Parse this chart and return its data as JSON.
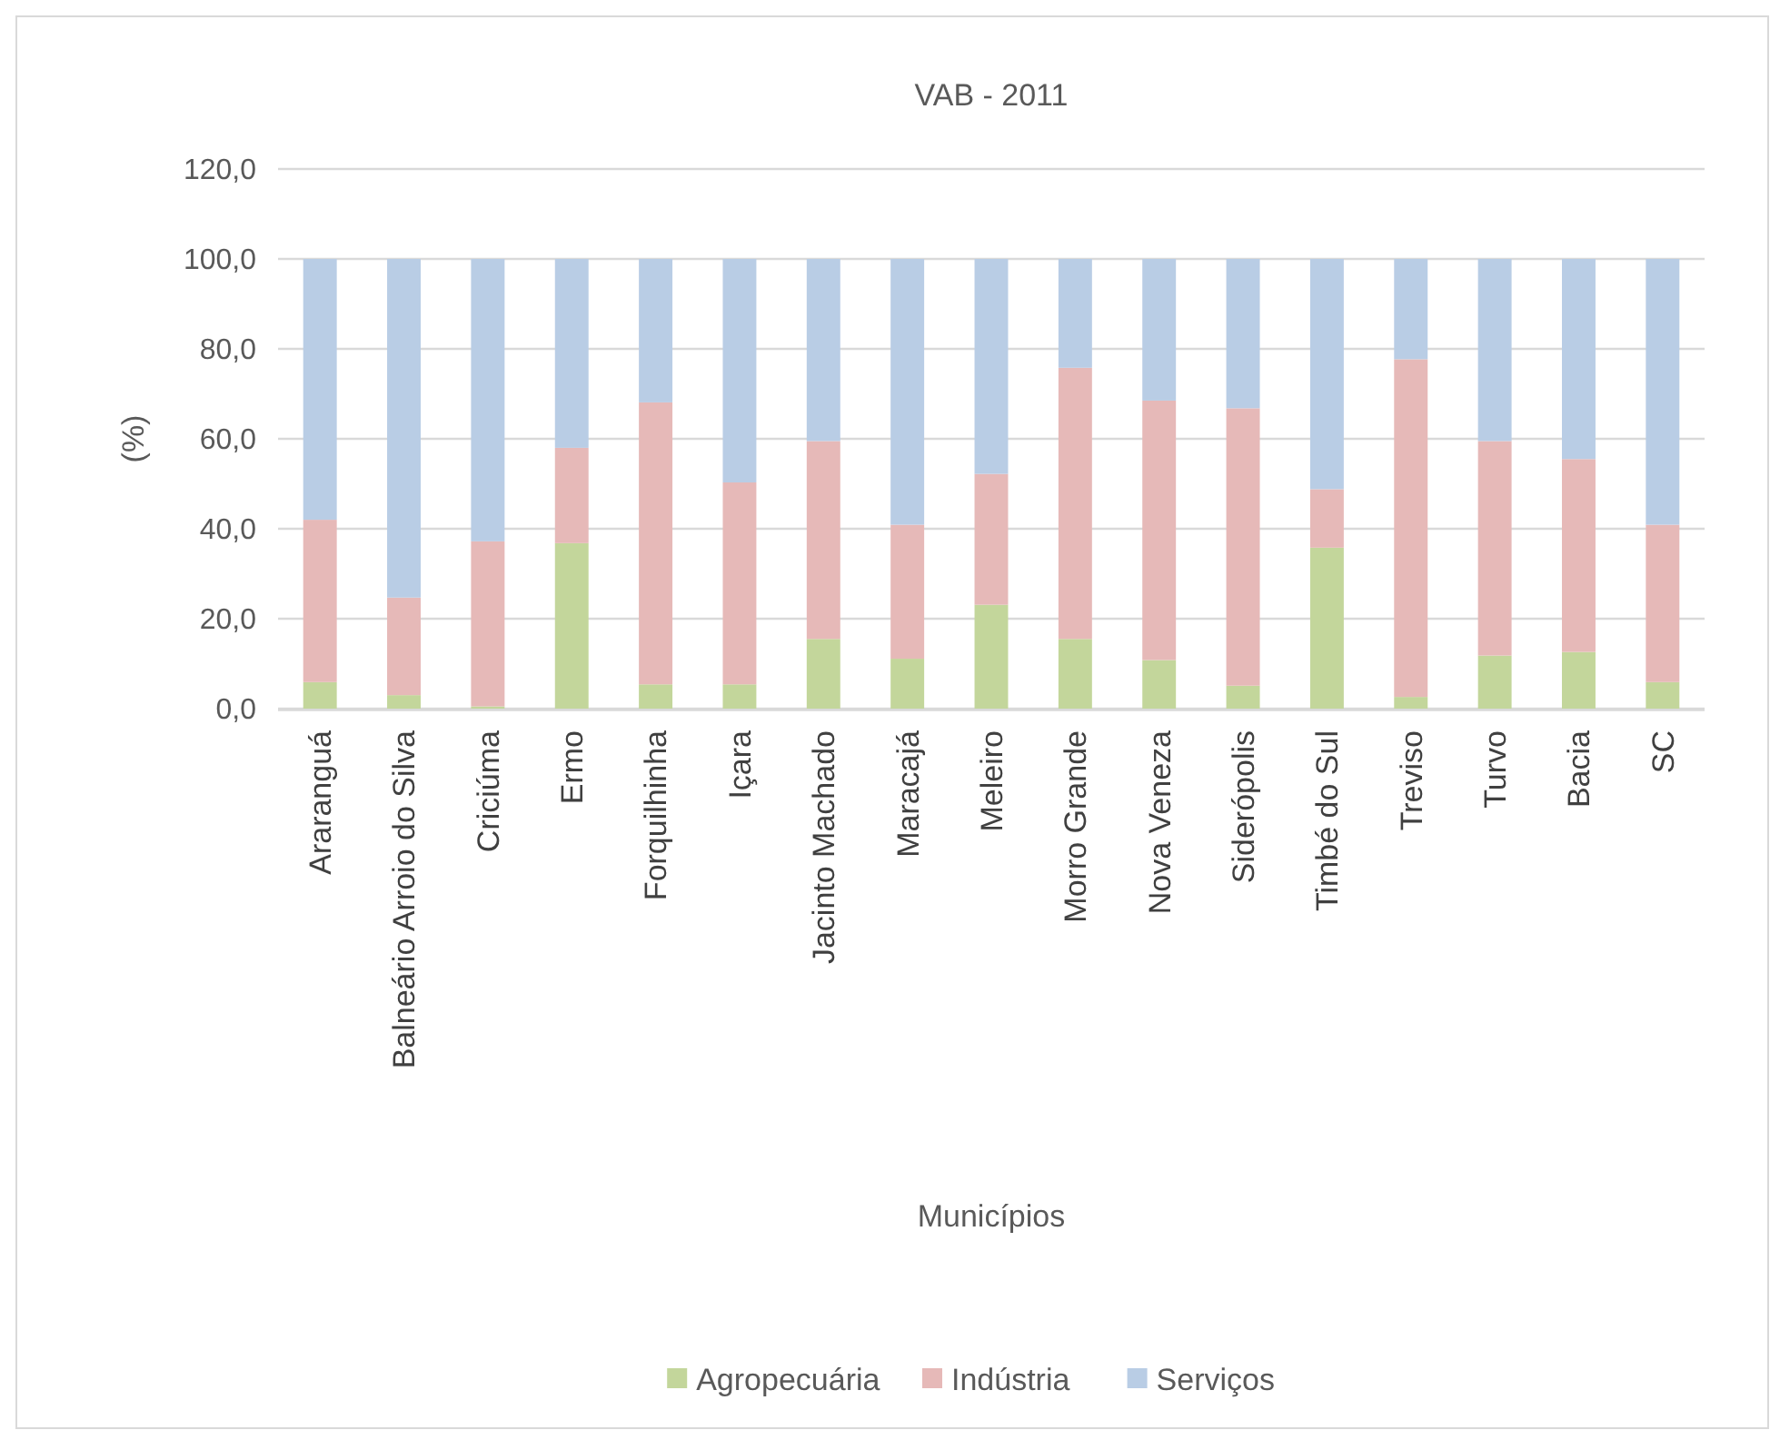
{
  "chart_data": {
    "type": "bar",
    "stacked": true,
    "title": "VAB - 2011",
    "xlabel": "Municípios",
    "ylabel": "(%)",
    "categories": [
      "Araranguá",
      "Balneário Arroio do Silva",
      "Criciúma",
      "Ermo",
      "Forquilhinha",
      "Içara",
      "Jacinto Machado",
      "Maracajá",
      "Meleiro",
      "Morro Grande",
      "Nova Veneza",
      "Siderópolis",
      "Timbé do Sul",
      "Treviso",
      "Turvo",
      "Bacia",
      "SC"
    ],
    "series": [
      {
        "name": "Agropecuária",
        "color": "#c3d69b",
        "values": [
          5.9,
          3.0,
          0.5,
          36.8,
          5.4,
          5.4,
          15.5,
          11.1,
          23.1,
          15.5,
          10.8,
          5.1,
          35.8,
          2.6,
          11.8,
          12.6,
          5.9
        ]
      },
      {
        "name": "Indústria",
        "color": "#e6b9b8",
        "values": [
          36.1,
          21.7,
          36.7,
          21.2,
          62.7,
          44.9,
          44.0,
          29.8,
          29.1,
          60.3,
          57.7,
          61.7,
          13.0,
          75.1,
          47.7,
          42.9,
          35.0
        ]
      },
      {
        "name": "Serviços",
        "color": "#b9cde5",
        "values": [
          58.0,
          75.3,
          62.8,
          42.0,
          31.9,
          49.7,
          40.5,
          59.1,
          47.8,
          24.2,
          31.5,
          33.2,
          51.2,
          22.3,
          40.5,
          44.5,
          59.1
        ]
      }
    ],
    "ylim": [
      0,
      120
    ],
    "yticks": [
      {
        "value": 0,
        "label": "0,0"
      },
      {
        "value": 20,
        "label": "20,0"
      },
      {
        "value": 40,
        "label": "40,0"
      },
      {
        "value": 60,
        "label": "60,0"
      },
      {
        "value": 80,
        "label": "80,0"
      },
      {
        "value": 100,
        "label": "100,0"
      },
      {
        "value": 120,
        "label": "120,0"
      }
    ],
    "grid": "y",
    "legend": "bottom"
  }
}
